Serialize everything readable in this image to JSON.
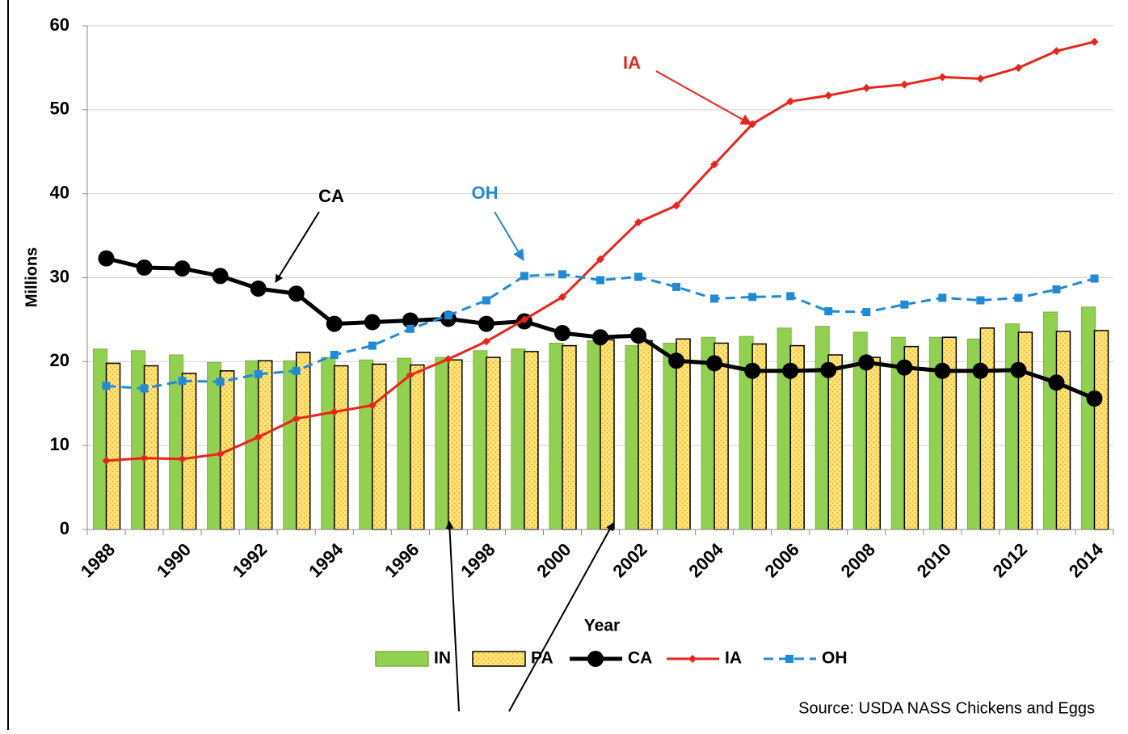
{
  "chart_data": {
    "type": "bar",
    "y_label": "Millions",
    "x_label": "Year",
    "source": "Source: USDA NASS Chickens and Eggs",
    "categories": [
      "1988",
      null,
      "1990",
      null,
      "1992",
      null,
      "1994",
      null,
      "1996",
      null,
      "1998",
      null,
      "2000",
      null,
      "2002",
      null,
      "2004",
      null,
      "2006",
      null,
      "2008",
      null,
      "2010",
      null,
      "2012",
      null,
      "2014"
    ],
    "ylim": [
      0,
      60
    ],
    "yticks": [
      0,
      10,
      20,
      30,
      40,
      50,
      60
    ],
    "grid": true,
    "legend": "bottom",
    "series": [
      {
        "name": "IN",
        "type": "bar",
        "color": "#92d050",
        "values": [
          21.5,
          21.3,
          20.8,
          19.9,
          20.1,
          20.1,
          20.5,
          20.2,
          20.4,
          20.5,
          21.3,
          21.5,
          22.2,
          22.5,
          21.9,
          22.2,
          22.9,
          23.0,
          24.0,
          24.2,
          23.5,
          22.9,
          22.9,
          22.7,
          24.5,
          25.9,
          26.5
        ]
      },
      {
        "name": "PA",
        "type": "bar",
        "color": "#ffd966",
        "values": [
          19.8,
          19.5,
          18.6,
          18.9,
          20.1,
          21.1,
          19.5,
          19.7,
          19.6,
          20.2,
          20.5,
          21.2,
          21.9,
          22.6,
          22.5,
          22.7,
          22.2,
          22.1,
          21.9,
          20.8,
          20.5,
          21.8,
          22.9,
          24.0,
          23.5,
          23.6,
          23.7
        ]
      },
      {
        "name": "CA",
        "type": "line",
        "marker": "circle",
        "dashed": false,
        "color": "#000000",
        "values": [
          32.3,
          31.2,
          31.1,
          30.2,
          28.7,
          28.1,
          24.5,
          24.7,
          24.9,
          25.1,
          24.5,
          24.8,
          23.4,
          22.9,
          23.1,
          20.1,
          19.8,
          18.9,
          18.9,
          19.0,
          19.9,
          19.3,
          18.9,
          18.9,
          19.0,
          17.5,
          15.6
        ]
      },
      {
        "name": "IA",
        "type": "line",
        "marker": "diamond",
        "dashed": false,
        "color": "#e8251a",
        "values": [
          8.2,
          8.5,
          8.4,
          9.0,
          11.0,
          13.2,
          14.0,
          14.8,
          18.4,
          20.3,
          22.4,
          25.0,
          27.7,
          32.2,
          36.6,
          38.6,
          43.5,
          48.3,
          51.0,
          51.7,
          52.6,
          53.0,
          53.9,
          53.7,
          55.0,
          57.0,
          58.1
        ]
      },
      {
        "name": "OH",
        "type": "line",
        "marker": "square",
        "dashed": true,
        "color": "#1f8ad8",
        "values": [
          17.1,
          16.8,
          17.7,
          17.6,
          18.5,
          18.9,
          20.8,
          21.9,
          23.9,
          25.5,
          27.3,
          30.2,
          30.4,
          29.7,
          30.1,
          28.9,
          27.5,
          27.7,
          27.8,
          26.0,
          25.9,
          26.8,
          27.6,
          27.3,
          27.6,
          28.6,
          29.9
        ]
      }
    ],
    "annotations": [
      {
        "text": "IA",
        "color": "#e8251a"
      },
      {
        "text": "CA",
        "color": "#000000"
      },
      {
        "text": "OH",
        "color": "#1f8ad8"
      }
    ]
  }
}
